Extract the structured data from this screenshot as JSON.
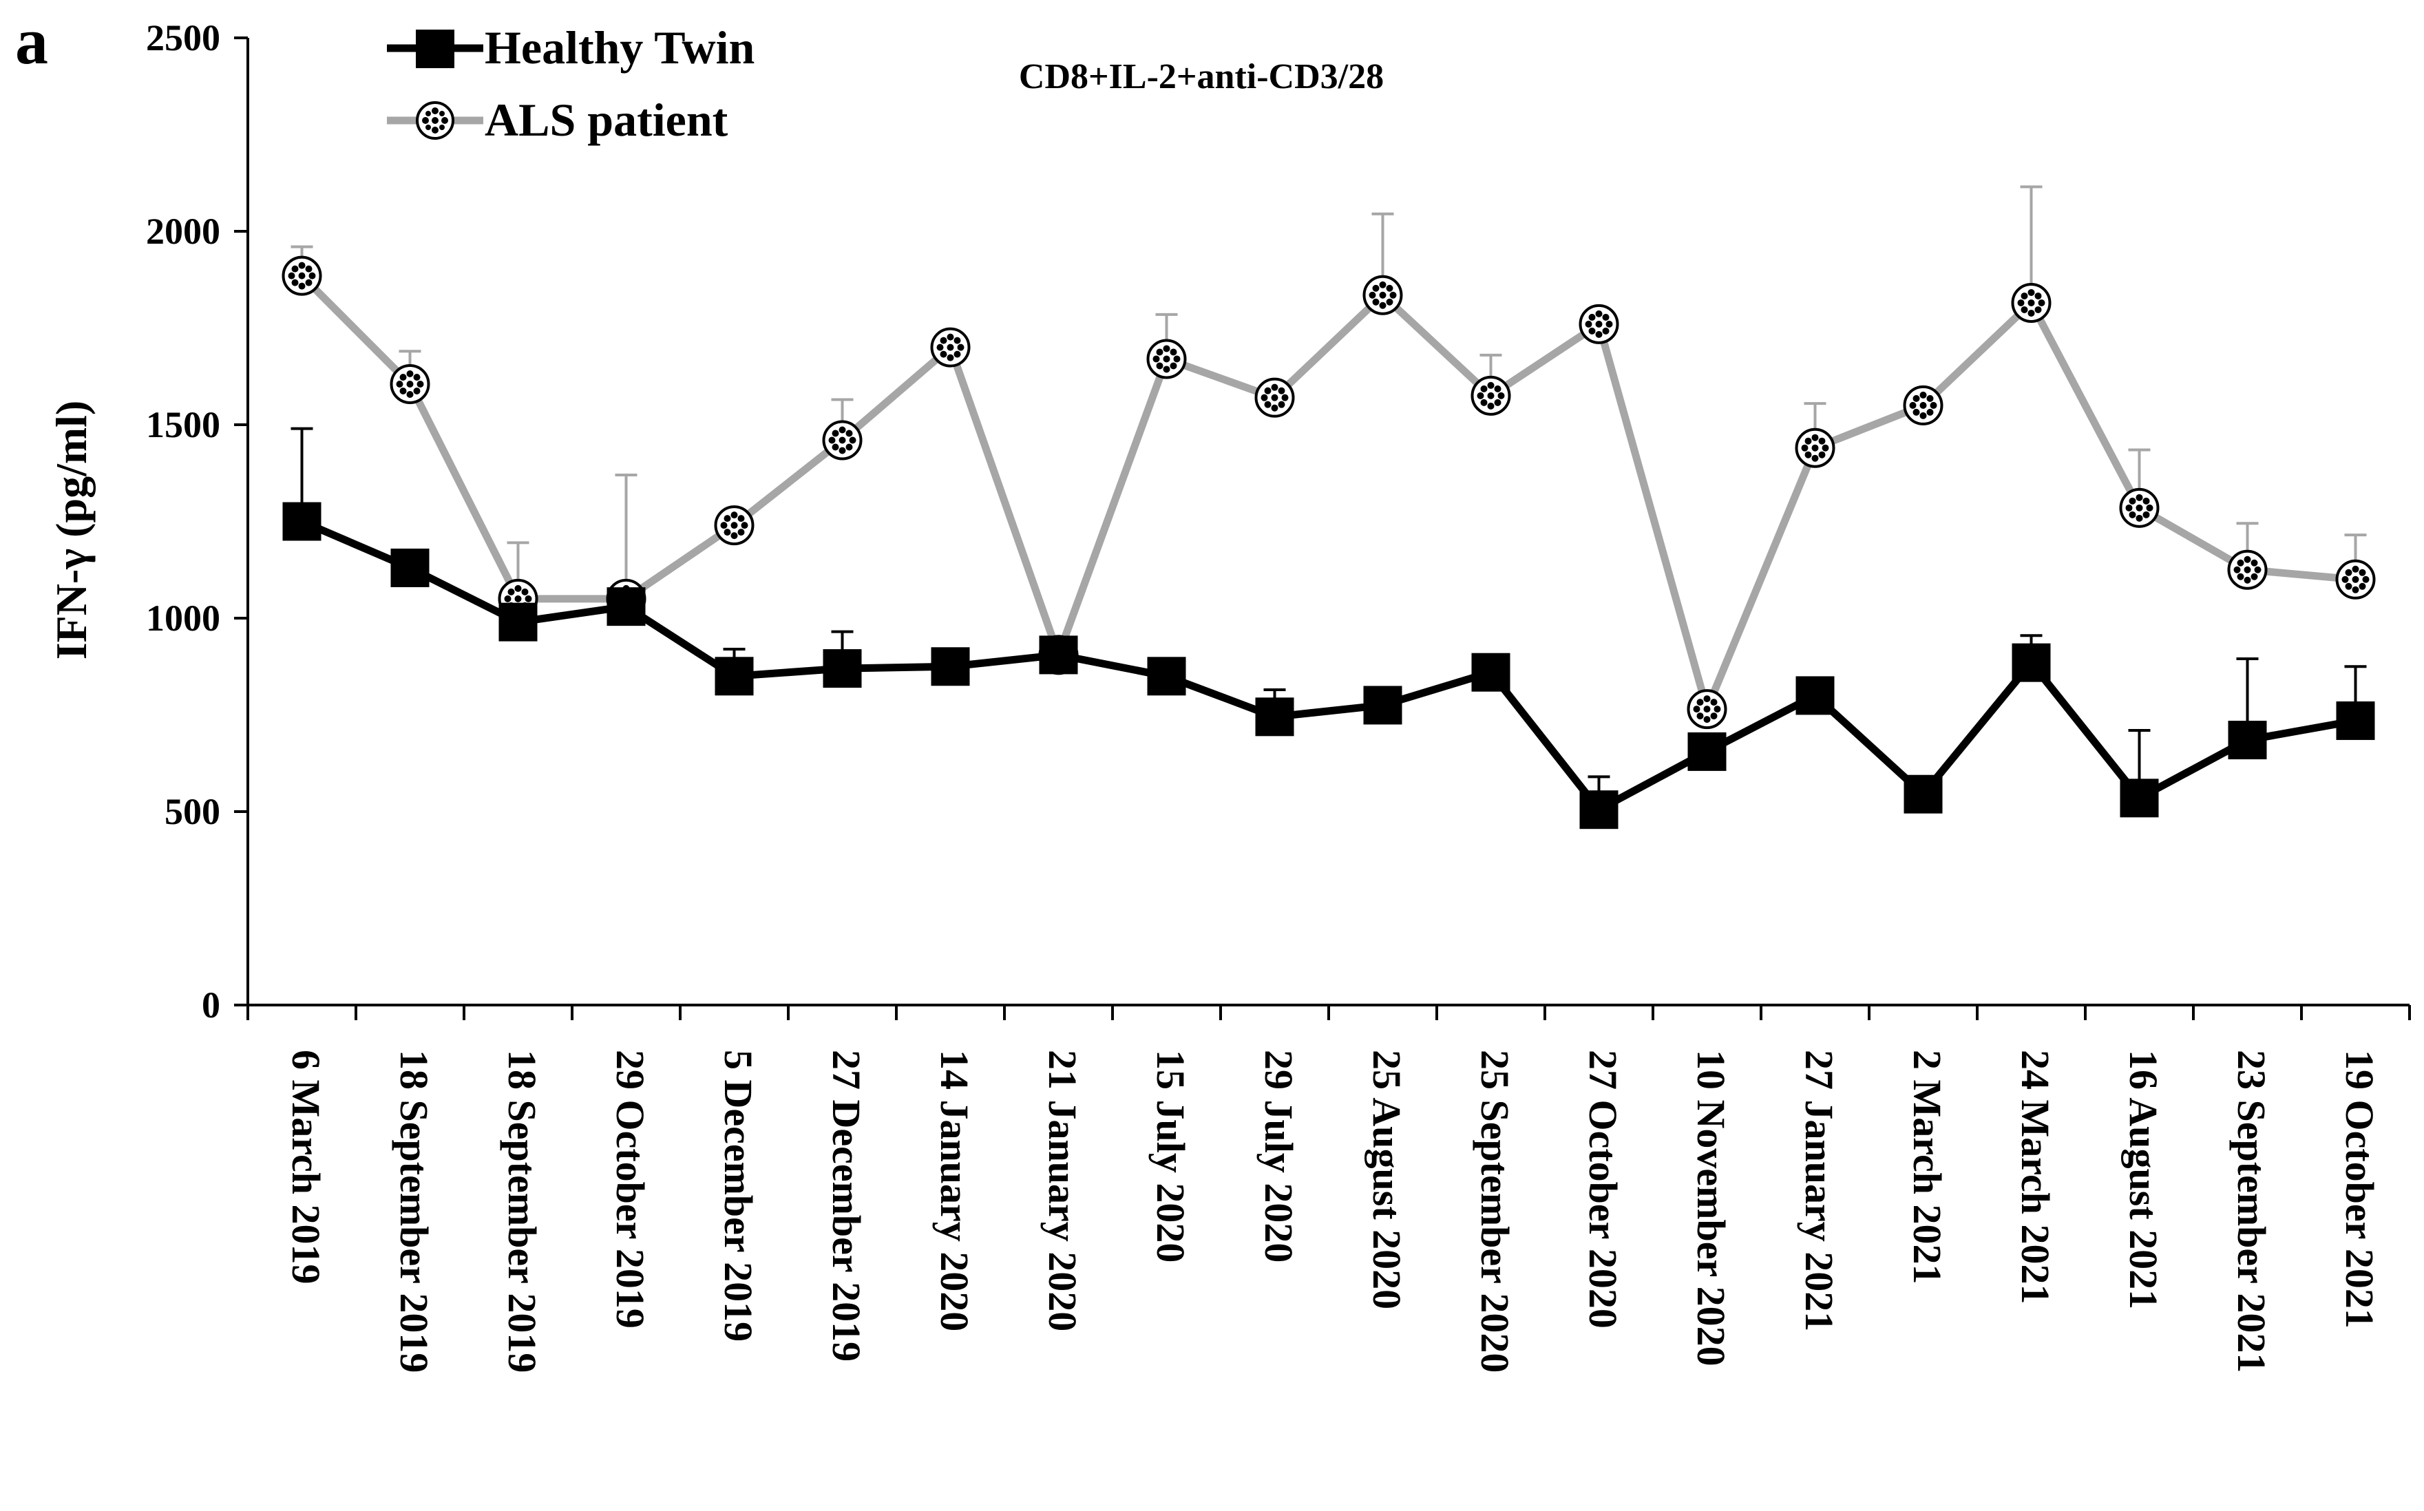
{
  "panel_label": "a",
  "chart_data": {
    "type": "line",
    "title": "CD8+IL-2+anti-CD3/28",
    "xlabel": "",
    "ylabel": "IFN-γ (pg/ml)",
    "ylim": [
      0,
      2500
    ],
    "yticks": [
      0,
      500,
      1000,
      1500,
      2000,
      2500
    ],
    "grid": false,
    "legend_position": "top-left",
    "categories": [
      "6 March 2019",
      "18 September 2019",
      "18 September 2019",
      "29 October 2019",
      "5 December 2019",
      "27 December 2019",
      "14 January 2020",
      "21 January 2020",
      "15 July 2020",
      "29 July 2020",
      "25 August 2020",
      "25 September 2020",
      "27 October 2020",
      "10 November 2020",
      "27 January 2021",
      "2 March 2021",
      "24 March 2021",
      "16 August 2021",
      "23 September 2021",
      "19 October 2021"
    ],
    "series": [
      {
        "name": "Healthy Twin",
        "marker": "filled-square",
        "color": "#000000",
        "values": [
          1250,
          1130,
          990,
          1030,
          850,
          870,
          875,
          905,
          850,
          745,
          775,
          860,
          505,
          655,
          800,
          545,
          885,
          535,
          685,
          735
        ],
        "error_upper": [
          1490,
          null,
          null,
          null,
          920,
          965,
          null,
          null,
          null,
          815,
          null,
          null,
          590,
          null,
          null,
          null,
          955,
          710,
          895,
          875
        ]
      },
      {
        "name": "ALS patient",
        "marker": "dotted-circle",
        "color": "#a6a6a6",
        "values": [
          1885,
          1605,
          1050,
          1050,
          1240,
          1460,
          1700,
          905,
          1670,
          1570,
          1835,
          1575,
          1760,
          765,
          1440,
          1550,
          1815,
          1285,
          1125,
          1100
        ],
        "error_upper": [
          1960,
          1690,
          1195,
          1370,
          null,
          1565,
          null,
          null,
          1785,
          null,
          2045,
          1680,
          null,
          null,
          1555,
          null,
          2115,
          1435,
          1245,
          1215
        ]
      }
    ]
  }
}
